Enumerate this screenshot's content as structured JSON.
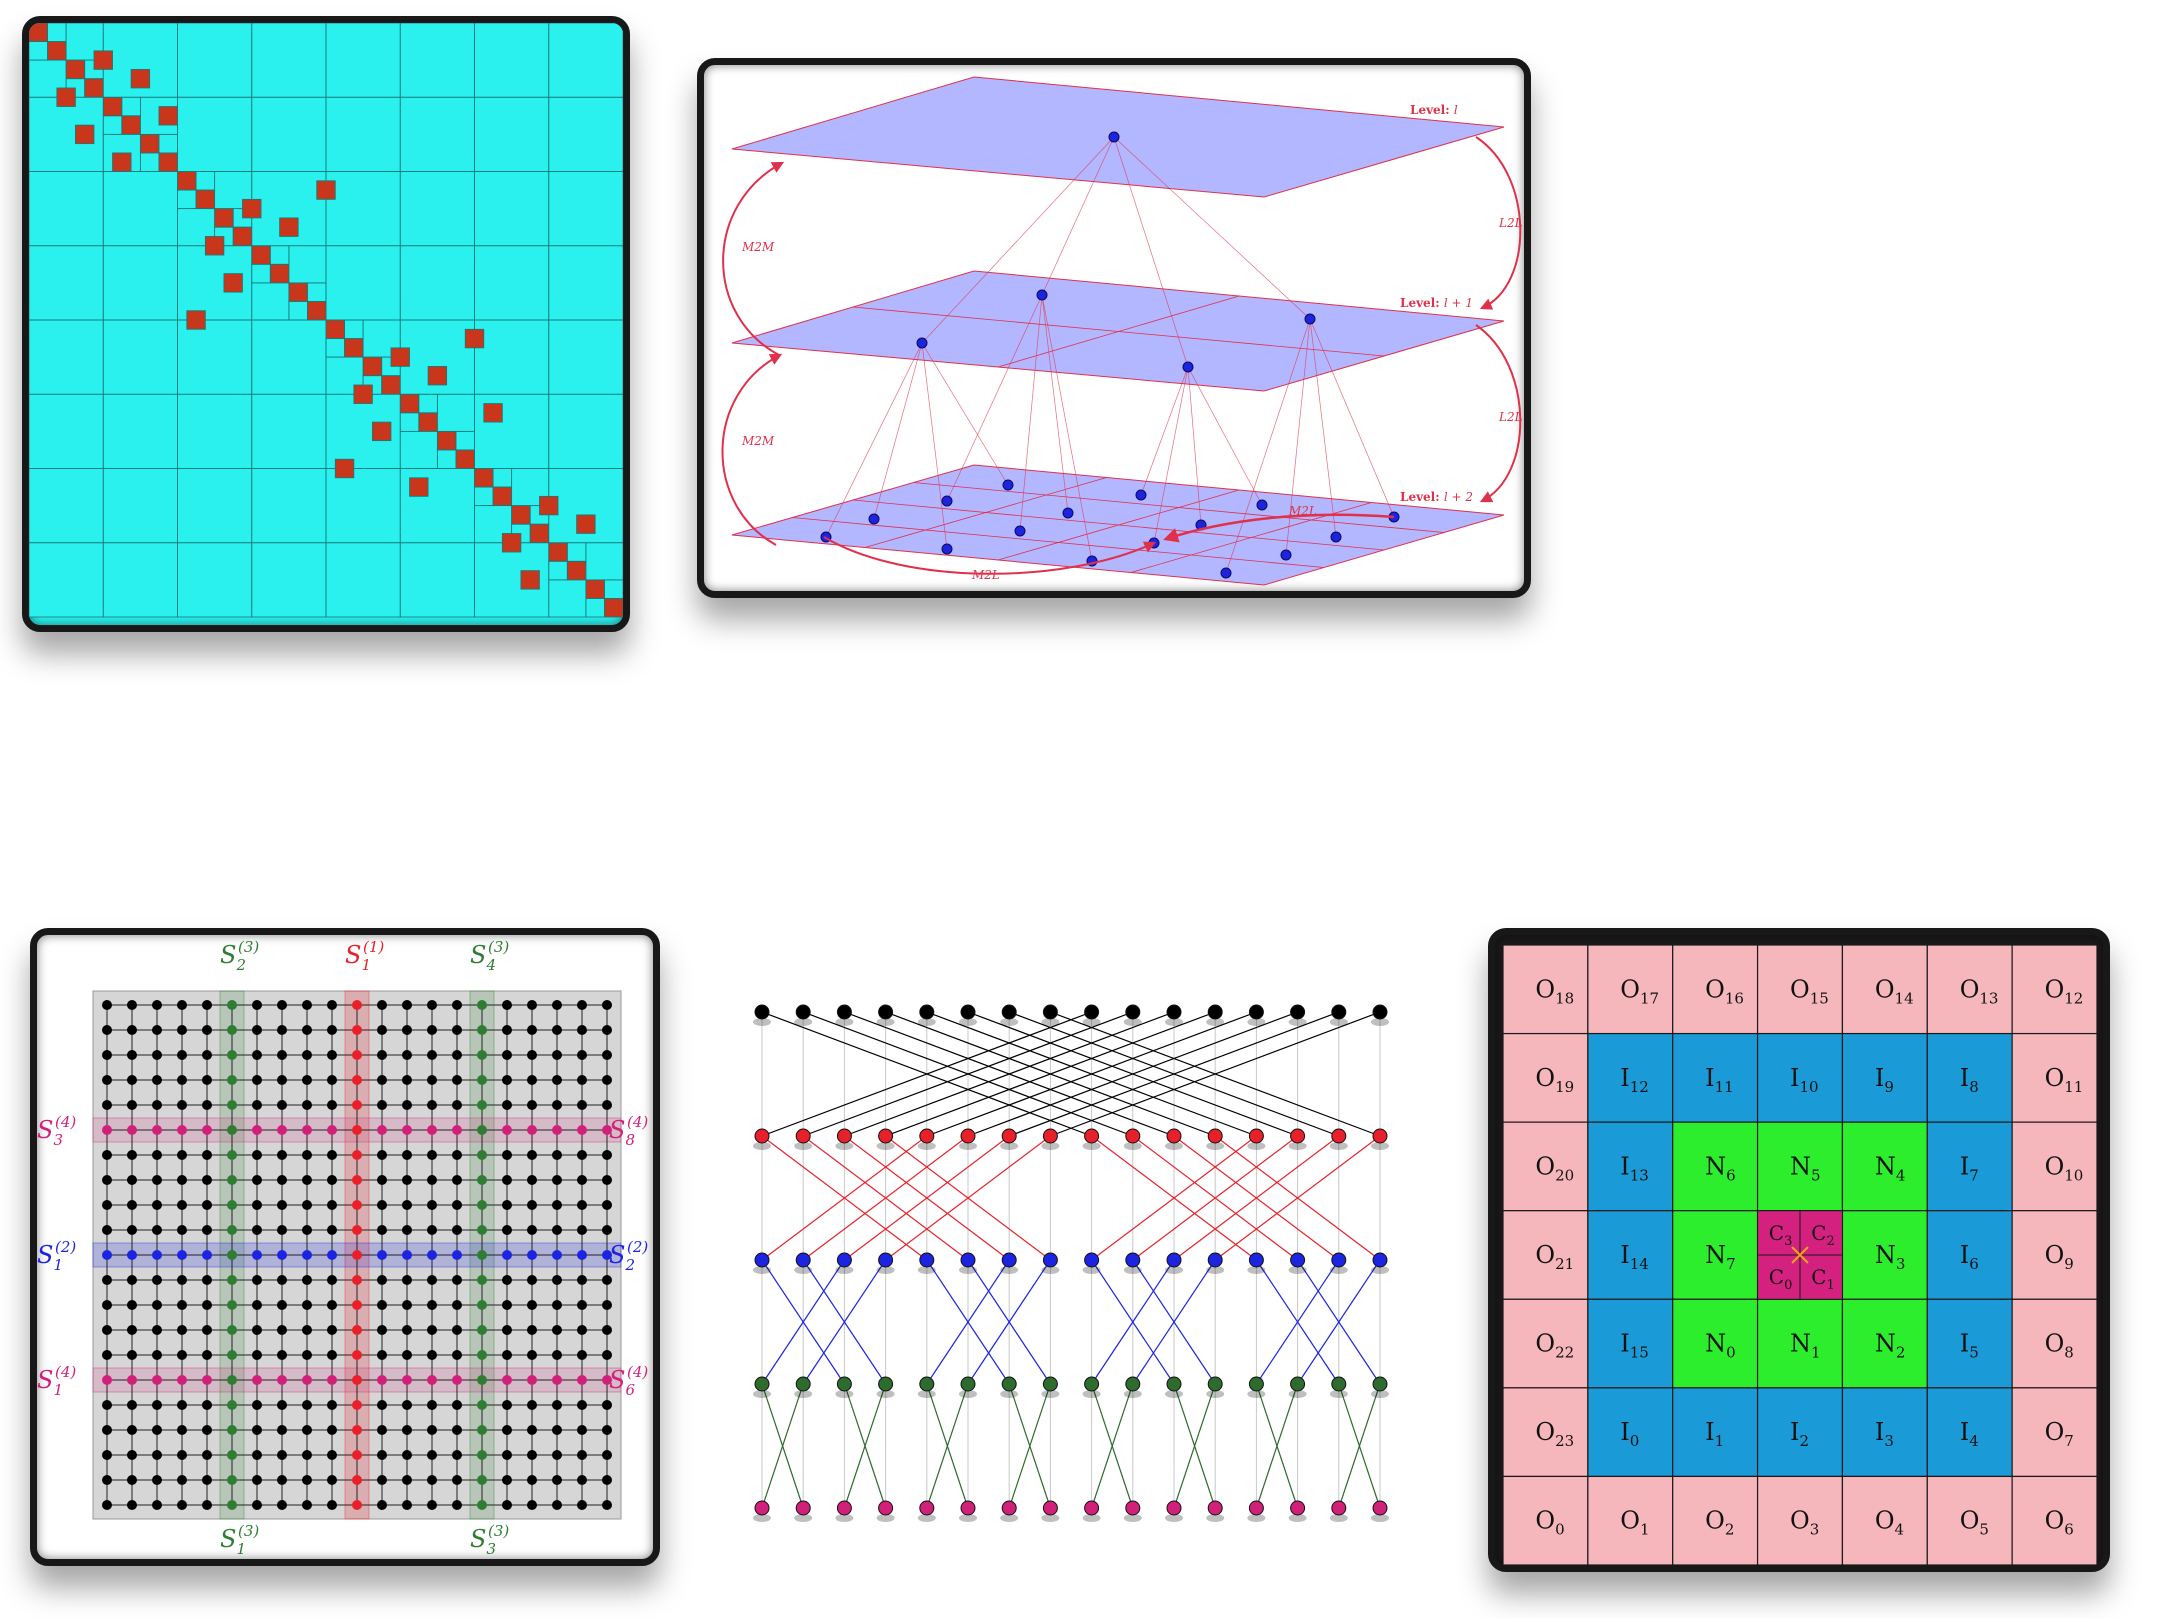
{
  "matrix_panel": {
    "background_color": "#2af0ee",
    "block_color": "#c8361c",
    "grid_color": "#147a78"
  },
  "fmm_panel": {
    "plane_color": "#aeb3ff",
    "edge_color": "#e0304a",
    "node_color": "#1c24e0",
    "levels": [
      {
        "label_prefix": "Level:",
        "label_value": "l"
      },
      {
        "label_prefix": "Level:",
        "label_value": "l + 1"
      },
      {
        "label_prefix": "Level:",
        "label_value": "l + 2"
      }
    ],
    "operators": {
      "m2m_upper": "M2M",
      "m2m_lower": "M2M",
      "l2l_upper": "L2L",
      "l2l_lower": "L2L",
      "m2l_right": "M2L",
      "m2l_bottom": "M2L"
    }
  },
  "separator_panel": {
    "labels": {
      "s2_3": "S",
      "s2_3_sub": "2",
      "s2_3_sup": "(3)",
      "s1_1": "S",
      "s1_1_sub": "1",
      "s1_1_sup": "(1)",
      "s4_3": "S",
      "s4_3_sub": "4",
      "s4_3_sup": "(3)",
      "s3_4": "S",
      "s3_4_sub": "3",
      "s3_4_sup": "(4)",
      "s8_4": "S",
      "s8_4_sub": "8",
      "s8_4_sup": "(4)",
      "s1_2": "S",
      "s1_2_sub": "1",
      "s1_2_sup": "(2)",
      "s2_2": "S",
      "s2_2_sub": "2",
      "s2_2_sup": "(2)",
      "s1_4": "S",
      "s1_4_sub": "1",
      "s1_4_sup": "(4)",
      "s6_4": "S",
      "s6_4_sub": "6",
      "s6_4_sup": "(4)",
      "s1_3": "S",
      "s1_3_sub": "1",
      "s1_3_sup": "(3)",
      "s3_3": "S",
      "s3_3_sub": "3",
      "s3_3_sup": "(3)"
    },
    "colors": {
      "green": "#2e7d32",
      "red": "#e8202a",
      "blue": "#1c24e0",
      "magenta": "#d0207a"
    }
  },
  "butterfly_panel": {
    "row_colors": [
      "#000000",
      "#e8202a",
      "#1c24e0",
      "#2e6b2e",
      "#d0207a"
    ],
    "nodes_per_row": 16
  },
  "stencil_panel": {
    "colors": {
      "outer": "#f6b7bc",
      "inner": "#1a9ad6",
      "near": "#2dee2d",
      "center": "#d4207f",
      "marker": "#f0a020"
    },
    "top_row": [
      {
        "letter": "O",
        "sub": "18"
      },
      {
        "letter": "O",
        "sub": "17"
      },
      {
        "letter": "O",
        "sub": "16"
      },
      {
        "letter": "O",
        "sub": "15"
      },
      {
        "letter": "O",
        "sub": "14"
      },
      {
        "letter": "O",
        "sub": "13"
      },
      {
        "letter": "O",
        "sub": "12"
      }
    ],
    "row2": [
      {
        "letter": "O",
        "sub": "19"
      },
      {
        "letter": "I",
        "sub": "12"
      },
      {
        "letter": "I",
        "sub": "11"
      },
      {
        "letter": "I",
        "sub": "10"
      },
      {
        "letter": "I",
        "sub": "9"
      },
      {
        "letter": "I",
        "sub": "8"
      },
      {
        "letter": "O",
        "sub": "11"
      }
    ],
    "row3": [
      {
        "letter": "O",
        "sub": "20"
      },
      {
        "letter": "I",
        "sub": "13"
      },
      {
        "letter": "N",
        "sub": "6"
      },
      {
        "letter": "N",
        "sub": "5"
      },
      {
        "letter": "N",
        "sub": "4"
      },
      {
        "letter": "I",
        "sub": "7"
      },
      {
        "letter": "O",
        "sub": "10"
      }
    ],
    "row4": [
      {
        "letter": "O",
        "sub": "21"
      },
      {
        "letter": "I",
        "sub": "14"
      },
      {
        "letter": "N",
        "sub": "7"
      },
      {
        "letter": "C",
        "sub": ""
      },
      {
        "letter": "N",
        "sub": "3"
      },
      {
        "letter": "I",
        "sub": "6"
      },
      {
        "letter": "O",
        "sub": "9"
      }
    ],
    "row5": [
      {
        "letter": "O",
        "sub": "22"
      },
      {
        "letter": "I",
        "sub": "15"
      },
      {
        "letter": "N",
        "sub": "0"
      },
      {
        "letter": "N",
        "sub": "1"
      },
      {
        "letter": "N",
        "sub": "2"
      },
      {
        "letter": "I",
        "sub": "5"
      },
      {
        "letter": "O",
        "sub": "8"
      }
    ],
    "row6": [
      {
        "letter": "O",
        "sub": "23"
      },
      {
        "letter": "I",
        "sub": "0"
      },
      {
        "letter": "I",
        "sub": "1"
      },
      {
        "letter": "I",
        "sub": "2"
      },
      {
        "letter": "I",
        "sub": "3"
      },
      {
        "letter": "I",
        "sub": "4"
      },
      {
        "letter": "O",
        "sub": "7"
      }
    ],
    "bottom_row": [
      {
        "letter": "O",
        "sub": "0"
      },
      {
        "letter": "O",
        "sub": "1"
      },
      {
        "letter": "O",
        "sub": "2"
      },
      {
        "letter": "O",
        "sub": "3"
      },
      {
        "letter": "O",
        "sub": "4"
      },
      {
        "letter": "O",
        "sub": "5"
      },
      {
        "letter": "O",
        "sub": "6"
      }
    ],
    "center_cells": [
      {
        "letter": "C",
        "sub": "3"
      },
      {
        "letter": "C",
        "sub": "2"
      },
      {
        "letter": "C",
        "sub": "0"
      },
      {
        "letter": "C",
        "sub": "1"
      }
    ]
  }
}
